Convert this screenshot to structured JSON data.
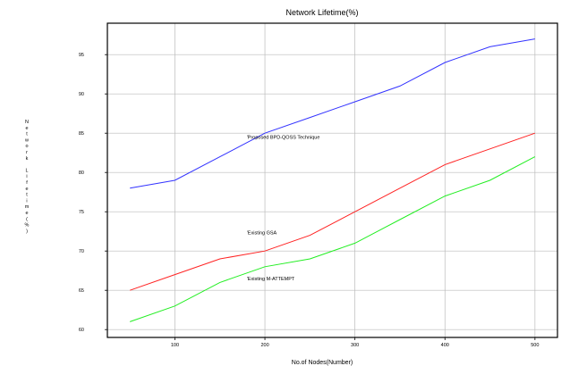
{
  "chart_data": {
    "type": "line",
    "title": "Network Lifetime(%)",
    "xlabel": "No.of Nodes(Number)",
    "ylabel": "Network Lifetime(%)",
    "xlim": [
      25,
      525
    ],
    "ylim": [
      59,
      99
    ],
    "xticks": [
      100,
      200,
      300,
      400,
      500
    ],
    "yticks": [
      60,
      65,
      70,
      75,
      80,
      85,
      90,
      95
    ],
    "grid": true,
    "x": [
      50,
      100,
      150,
      200,
      250,
      300,
      350,
      400,
      450,
      500
    ],
    "series": [
      {
        "name": "Proposed BPD-QOSS Technique",
        "color": "#3333ff",
        "values": [
          78,
          79,
          82,
          85,
          87,
          89,
          91,
          94,
          96,
          97
        ]
      },
      {
        "name": "Existing GSA",
        "color": "#ff2222",
        "values": [
          65,
          67,
          69,
          70,
          72,
          75,
          78,
          81,
          83,
          85
        ]
      },
      {
        "name": "Existing M-ATTEMPT",
        "color": "#22ee22",
        "values": [
          61,
          63,
          66,
          68,
          69,
          71,
          74,
          77,
          79,
          82
        ]
      }
    ],
    "annotations": [
      {
        "text": "Proposed BPD-QOSS Technique",
        "x": 150,
        "y": 84.3
      },
      {
        "text": "Existing GSA",
        "x": 150,
        "y": 72.1
      },
      {
        "text": "Existing M-ATTEMPT",
        "x": 150,
        "y": 66.3
      }
    ]
  }
}
